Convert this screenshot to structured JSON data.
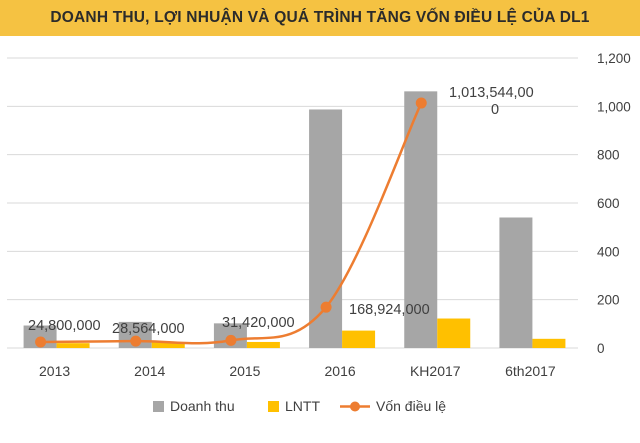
{
  "title": "DOANH THU, LỢI NHUẬN VÀ QUÁ TRÌNH TĂNG VỐN ĐIỀU LỆ CỦA DL1",
  "colors": {
    "title_bg": "#f5c242",
    "doanh_thu": "#a6a6a6",
    "lntt": "#ffc000",
    "von_dieu_le": "#ed7d31",
    "grid": "#d9d9d9"
  },
  "chart_data": {
    "type": "bar",
    "categories": [
      "2013",
      "2014",
      "2015",
      "2016",
      "KH2017",
      "6th2017"
    ],
    "series": [
      {
        "name": "Doanh thu",
        "type": "bar",
        "axis": "left",
        "values": [
          93,
          108,
          102,
          987,
          1062,
          540
        ]
      },
      {
        "name": "LNTT",
        "type": "bar",
        "axis": "left",
        "values": [
          20,
          23,
          25,
          72,
          122,
          38
        ]
      },
      {
        "name": "Vốn điều lệ",
        "type": "line",
        "axis": "right",
        "values": [
          24.8,
          28.564,
          31.42,
          168.924,
          1013.544,
          null
        ]
      }
    ],
    "data_labels": [
      "24,800,000",
      "28,564,000",
      "31,420,000",
      "168,924,000",
      "1,013,544,00\n0"
    ],
    "right_axis": {
      "ticks": [
        "0",
        "200",
        "400",
        "600",
        "800",
        "1,000",
        "1,200"
      ],
      "ylim": [
        0,
        1200
      ]
    },
    "left_axis": {
      "ylim": [
        0,
        1200
      ]
    },
    "grid": true,
    "legend": {
      "position": "bottom",
      "entries": [
        "Doanh thu",
        "LNTT",
        "Vốn điều lệ"
      ]
    }
  }
}
